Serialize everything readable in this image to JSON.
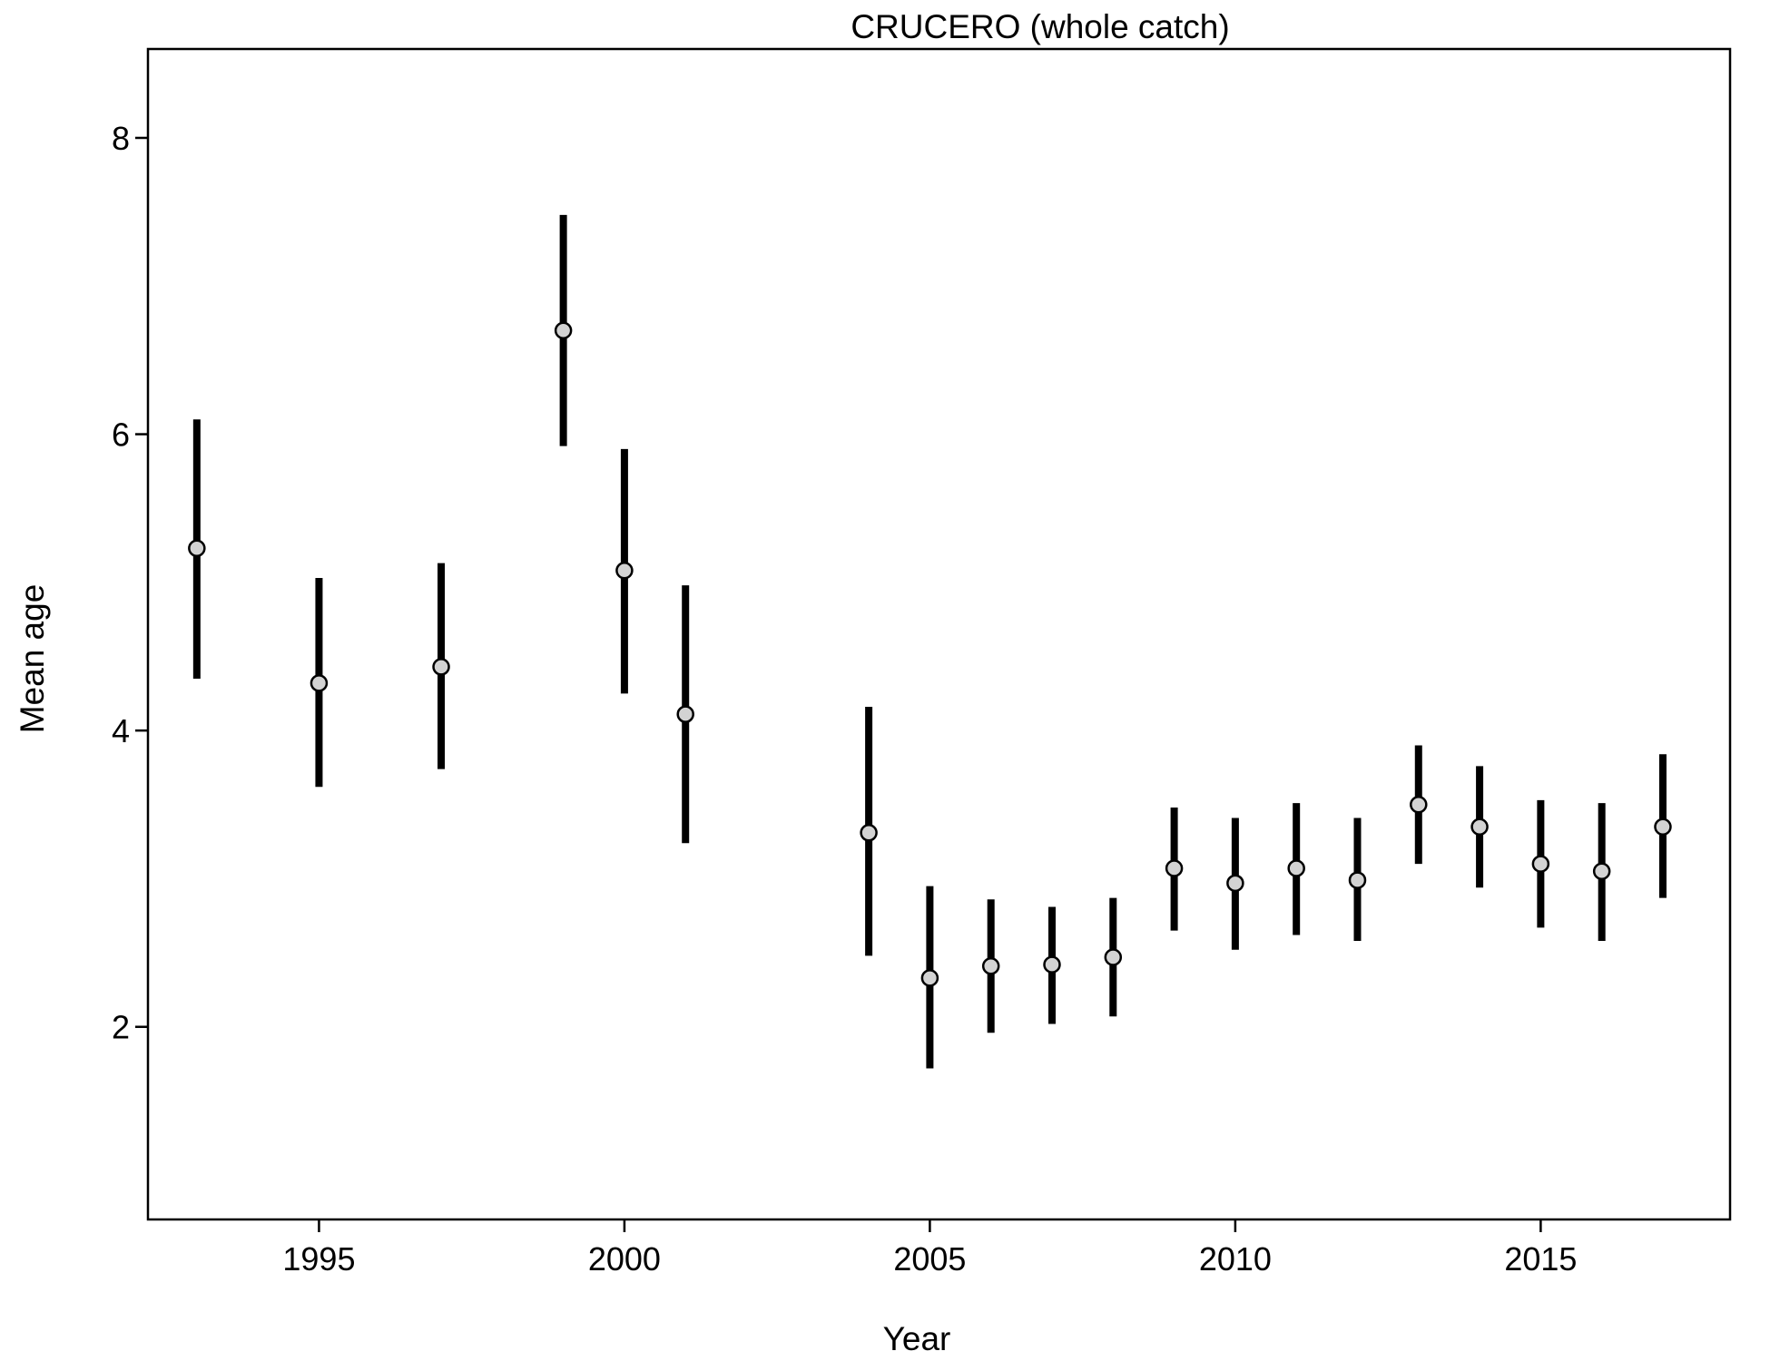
{
  "chart_data": {
    "type": "scatter",
    "title": "CRUCERO (whole catch)",
    "xlabel": "Year",
    "ylabel": "Mean age",
    "xlim": [
      1992.2,
      2018.1
    ],
    "ylim": [
      0.7,
      8.6
    ],
    "x_ticks": [
      1995,
      2000,
      2005,
      2010,
      2015
    ],
    "y_ticks": [
      2,
      4,
      6,
      8
    ],
    "grid": false,
    "legend": "none",
    "error_bars": true,
    "series": [
      {
        "points": [
          {
            "x": 1993,
            "y": 5.23,
            "low": 4.35,
            "high": 6.1
          },
          {
            "x": 1995,
            "y": 4.32,
            "low": 3.62,
            "high": 5.03
          },
          {
            "x": 1997,
            "y": 4.43,
            "low": 3.74,
            "high": 5.13
          },
          {
            "x": 1999,
            "y": 6.7,
            "low": 5.92,
            "high": 7.48
          },
          {
            "x": 2000,
            "y": 5.08,
            "low": 4.25,
            "high": 5.9
          },
          {
            "x": 2001,
            "y": 4.11,
            "low": 3.24,
            "high": 4.98
          },
          {
            "x": 2004,
            "y": 3.31,
            "low": 2.48,
            "high": 4.16
          },
          {
            "x": 2005,
            "y": 2.33,
            "low": 1.72,
            "high": 2.95
          },
          {
            "x": 2006,
            "y": 2.41,
            "low": 1.96,
            "high": 2.86
          },
          {
            "x": 2007,
            "y": 2.42,
            "low": 2.02,
            "high": 2.81
          },
          {
            "x": 2008,
            "y": 2.47,
            "low": 2.07,
            "high": 2.87
          },
          {
            "x": 2009,
            "y": 3.07,
            "low": 2.65,
            "high": 3.48
          },
          {
            "x": 2010,
            "y": 2.97,
            "low": 2.52,
            "high": 3.41
          },
          {
            "x": 2011,
            "y": 3.07,
            "low": 2.62,
            "high": 3.51
          },
          {
            "x": 2012,
            "y": 2.99,
            "low": 2.58,
            "high": 3.41
          },
          {
            "x": 2013,
            "y": 3.5,
            "low": 3.1,
            "high": 3.9
          },
          {
            "x": 2014,
            "y": 3.35,
            "low": 2.94,
            "high": 3.76
          },
          {
            "x": 2015,
            "y": 3.1,
            "low": 2.67,
            "high": 3.53
          },
          {
            "x": 2016,
            "y": 3.05,
            "low": 2.58,
            "high": 3.51
          },
          {
            "x": 2017,
            "y": 3.35,
            "low": 2.87,
            "high": 3.84
          }
        ]
      }
    ],
    "colors": {
      "bar": "#000000",
      "marker_fill": "#d3d3d3",
      "marker_stroke": "#000000"
    }
  }
}
